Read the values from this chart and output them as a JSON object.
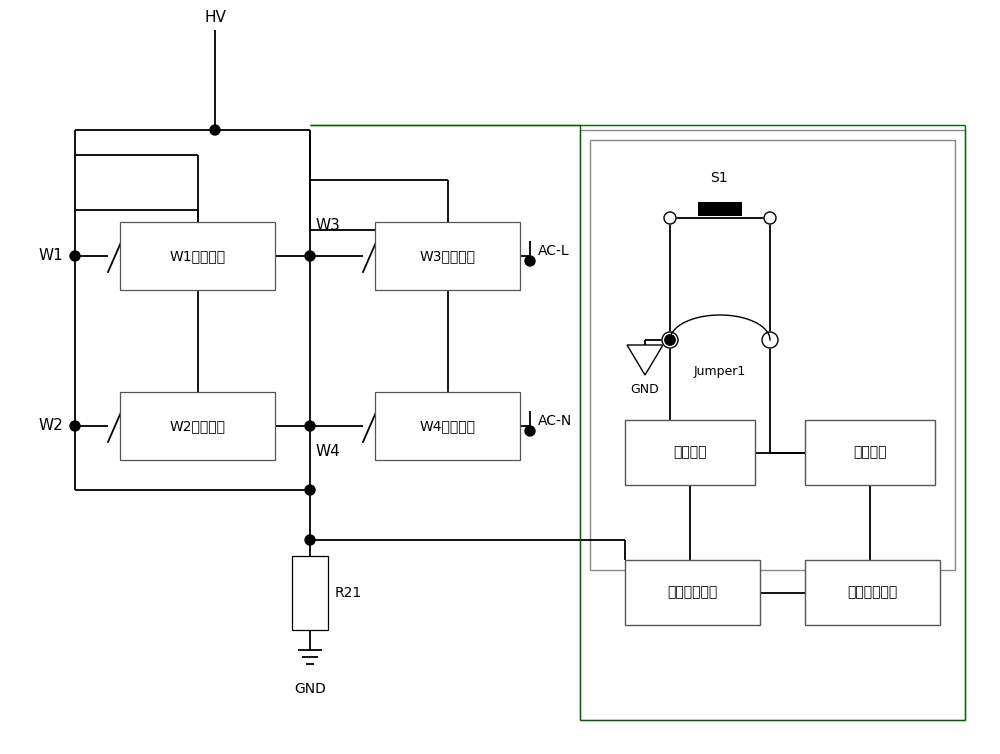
{
  "bg_color": "#ffffff",
  "line_color": "#000000",
  "box_border_color": "#555555",
  "green_line_color": "#006400",
  "gray_line_color": "#888888",
  "labels": {
    "hv": "HV",
    "w1": "W1",
    "w2": "W2",
    "w3": "W3",
    "w4": "W4",
    "w1_box": "W1驱动电路",
    "w2_box": "W2驱动电路",
    "w3_box": "W3驱动电路",
    "w4_box": "W4驱动电路",
    "acl": "AC-L",
    "acn": "AC-N",
    "s1": "S1",
    "jumper1": "Jumper1",
    "gnd": "GND",
    "r21": "R21",
    "mem": "记忆电路",
    "ctl": "控制电路",
    "vamp": "电压放大电路",
    "vdet": "电压检测电路"
  }
}
